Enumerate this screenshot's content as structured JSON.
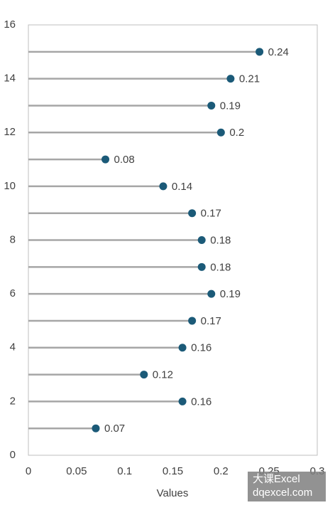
{
  "chart_data": {
    "type": "lollipop",
    "x": [
      0.07,
      0.16,
      0.12,
      0.16,
      0.17,
      0.19,
      0.18,
      0.18,
      0.17,
      0.14,
      0.08,
      0.2,
      0.19,
      0.21,
      0.24
    ],
    "y": [
      1,
      2,
      3,
      4,
      5,
      6,
      7,
      8,
      9,
      10,
      11,
      12,
      13,
      14,
      15
    ],
    "color": "#1b5a78",
    "stem_color": "#a6a6a6",
    "xlabel": "Values",
    "xlim": [
      0,
      0.3
    ],
    "xticks": [
      0,
      0.05,
      0.1,
      0.15,
      0.2,
      0.25,
      0.3
    ],
    "ylim": [
      0,
      16
    ],
    "yticks": [
      0,
      2,
      4,
      6,
      8,
      10,
      12,
      14,
      16
    ],
    "data_labels": true
  },
  "watermark": {
    "line1": "大课Excel",
    "line2": "dqexcel.com"
  }
}
